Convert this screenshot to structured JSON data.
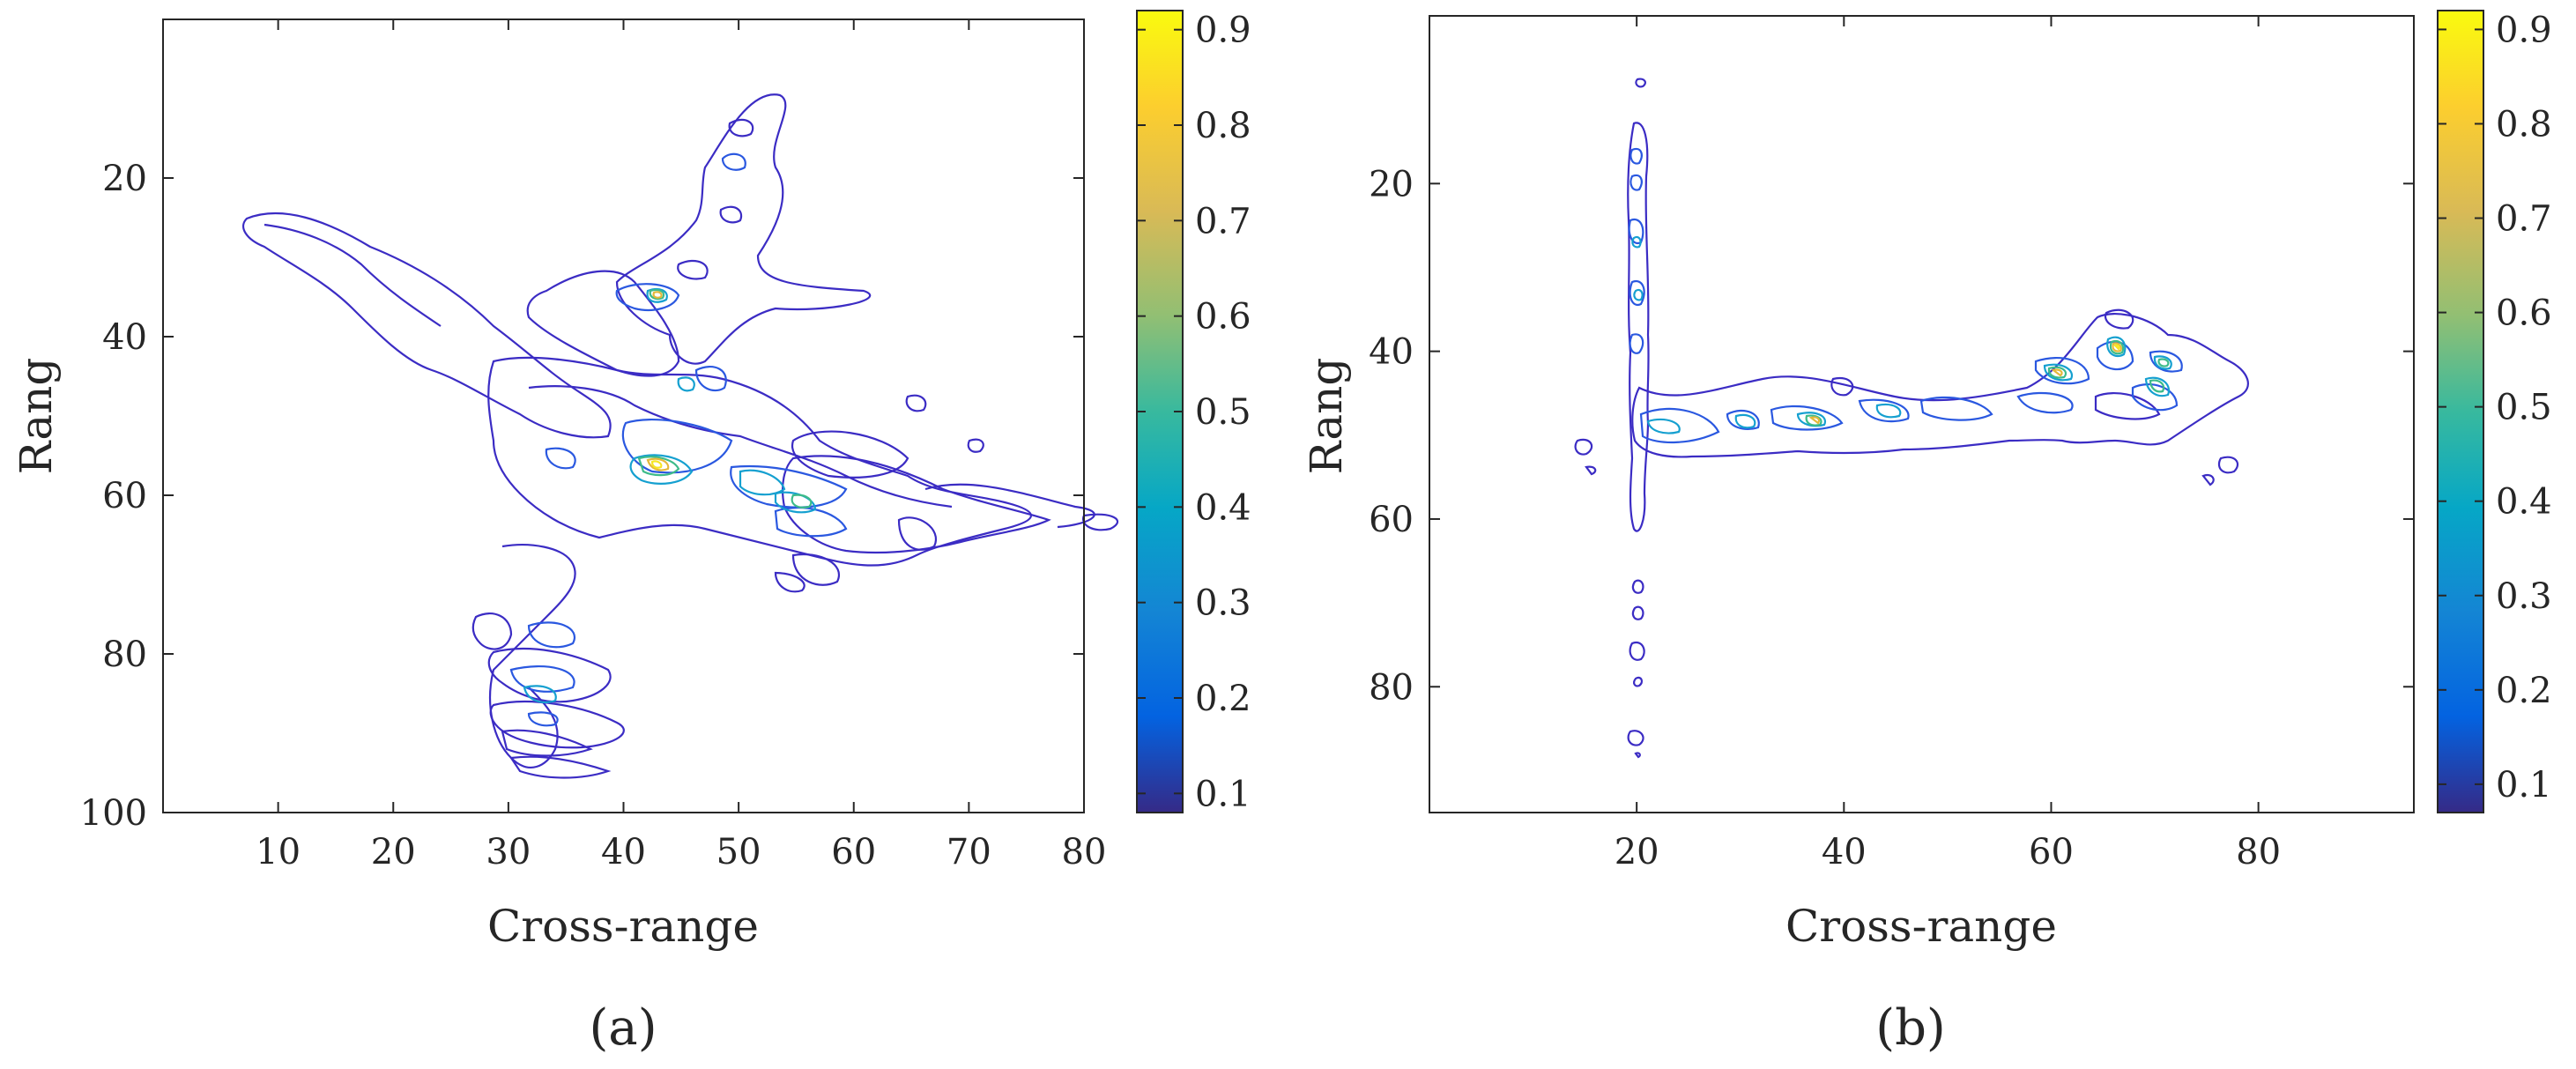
{
  "chart_data": [
    {
      "type": "contour",
      "panel": "(a)",
      "xlabel": "Cross-range",
      "ylabel": "Rang",
      "xlim": [
        0,
        80
      ],
      "ylim": [
        100,
        0
      ],
      "y_axis_direction": "reversed",
      "xticks": [
        10,
        20,
        30,
        40,
        50,
        60,
        70,
        80
      ],
      "yticks": [
        20,
        40,
        60,
        80,
        100
      ],
      "colorbar": {
        "min": 0.08,
        "max": 0.92,
        "ticks": [
          0.1,
          0.2,
          0.3,
          0.4,
          0.5,
          0.6,
          0.7,
          0.8,
          0.9
        ],
        "colormap": "parula"
      },
      "hotspots": [
        {
          "x": 40,
          "y": 36,
          "level": 0.85
        },
        {
          "x": 43,
          "y": 57,
          "level": 0.85
        },
        {
          "x": 56,
          "y": 62,
          "level": 0.6
        },
        {
          "x": 32,
          "y": 79,
          "level": 0.55
        },
        {
          "x": 43,
          "y": 47,
          "level": 0.4
        },
        {
          "x": 47,
          "y": 20,
          "level": 0.35
        },
        {
          "x": 46,
          "y": 26,
          "level": 0.3
        },
        {
          "x": 34,
          "y": 56,
          "level": 0.3
        },
        {
          "x": 34,
          "y": 68,
          "level": 0.3
        },
        {
          "x": 33,
          "y": 87,
          "level": 0.25
        }
      ]
    },
    {
      "type": "contour",
      "panel": "(b)",
      "xlabel": "Cross-range",
      "ylabel": "Rang",
      "xlim": [
        0,
        95
      ],
      "ylim": [
        95,
        0
      ],
      "y_axis_direction": "reversed",
      "xticks": [
        20,
        40,
        60,
        80
      ],
      "yticks": [
        20,
        40,
        60,
        80
      ],
      "colorbar": {
        "min": 0.07,
        "max": 0.92,
        "ticks": [
          0.1,
          0.2,
          0.3,
          0.4,
          0.5,
          0.6,
          0.7,
          0.8,
          0.9
        ],
        "colormap": "parula"
      },
      "hotspots": [
        {
          "x": 65,
          "y": 41,
          "level": 0.85
        },
        {
          "x": 62,
          "y": 45,
          "level": 0.7
        },
        {
          "x": 70,
          "y": 48,
          "level": 0.65
        },
        {
          "x": 71,
          "y": 44,
          "level": 0.6
        },
        {
          "x": 38,
          "y": 50,
          "level": 0.6
        },
        {
          "x": 46,
          "y": 49,
          "level": 0.5
        },
        {
          "x": 32,
          "y": 51,
          "level": 0.45
        },
        {
          "x": 22,
          "y": 52,
          "level": 0.35
        },
        {
          "x": 22,
          "y": 33,
          "level": 0.3
        },
        {
          "x": 22,
          "y": 41,
          "level": 0.3
        }
      ]
    }
  ]
}
